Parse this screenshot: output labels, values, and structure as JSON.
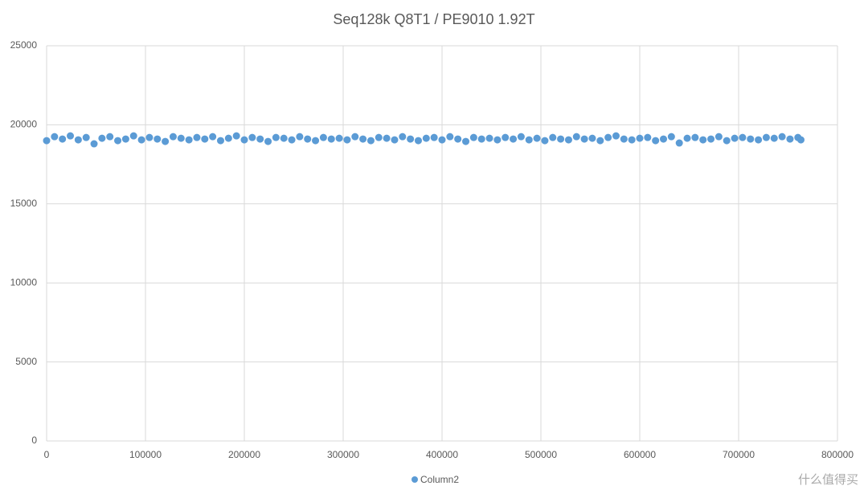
{
  "chart_data": {
    "type": "scatter",
    "title": "Seq128k Q8T1 / PE9010 1.92T",
    "series": [
      {
        "name": "Column2",
        "color": "#5b9bd5",
        "x": [
          0,
          8000,
          16000,
          24000,
          32000,
          40000,
          48000,
          56000,
          64000,
          72000,
          80000,
          88000,
          96000,
          104000,
          112000,
          120000,
          128000,
          136000,
          144000,
          152000,
          160000,
          168000,
          176000,
          184000,
          192000,
          200000,
          208000,
          216000,
          224000,
          232000,
          240000,
          248000,
          256000,
          264000,
          272000,
          280000,
          288000,
          296000,
          304000,
          312000,
          320000,
          328000,
          336000,
          344000,
          352000,
          360000,
          368000,
          376000,
          384000,
          392000,
          400000,
          408000,
          416000,
          424000,
          432000,
          440000,
          448000,
          456000,
          464000,
          472000,
          480000,
          488000,
          496000,
          504000,
          512000,
          520000,
          528000,
          536000,
          544000,
          552000,
          560000,
          568000,
          576000,
          584000,
          592000,
          600000,
          608000,
          616000,
          624000,
          632000,
          640000,
          648000,
          656000,
          664000,
          672000,
          680000,
          688000,
          696000,
          704000,
          712000,
          720000,
          728000,
          736000,
          744000,
          752000,
          760000,
          763000
        ],
        "values": [
          19000,
          19250,
          19100,
          19300,
          19050,
          19200,
          18800,
          19150,
          19250,
          19000,
          19100,
          19300,
          19050,
          19200,
          19100,
          18950,
          19250,
          19150,
          19050,
          19200,
          19100,
          19250,
          19000,
          19150,
          19300,
          19050,
          19200,
          19100,
          18950,
          19200,
          19150,
          19050,
          19250,
          19100,
          19000,
          19200,
          19100,
          19150,
          19050,
          19250,
          19100,
          19000,
          19200,
          19150,
          19050,
          19250,
          19100,
          19000,
          19150,
          19200,
          19050,
          19250,
          19100,
          18950,
          19200,
          19100,
          19150,
          19050,
          19200,
          19100,
          19250,
          19050,
          19150,
          19000,
          19200,
          19100,
          19050,
          19250,
          19100,
          19150,
          19000,
          19200,
          19300,
          19100,
          19050,
          19150,
          19200,
          19000,
          19100,
          19250,
          18850,
          19150,
          19200,
          19050,
          19100,
          19250,
          19000,
          19150,
          19200,
          19100,
          19050,
          19200,
          19150,
          19250,
          19100,
          19200,
          19050
        ]
      }
    ],
    "xlim": [
      0,
      800000
    ],
    "xticks": [
      0,
      100000,
      200000,
      300000,
      400000,
      500000,
      600000,
      700000,
      800000
    ],
    "ylim": [
      0,
      25000
    ],
    "yticks": [
      0,
      5000,
      10000,
      15000,
      20000,
      25000
    ],
    "grid": true,
    "legend": "bottom",
    "watermark": "什么值得买"
  }
}
